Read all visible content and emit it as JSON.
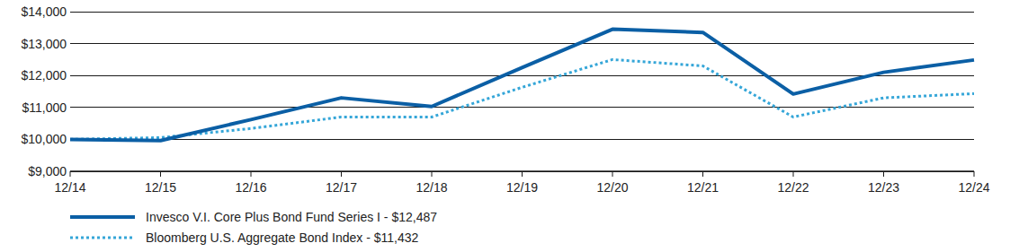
{
  "chart_data": {
    "type": "line",
    "categories": [
      "12/14",
      "12/15",
      "12/16",
      "12/17",
      "12/18",
      "12/19",
      "12/20",
      "12/21",
      "12/22",
      "12/23",
      "12/24"
    ],
    "series": [
      {
        "name": "Invesco V.I. Core Plus Bond Fund Series I - $12,487",
        "color": "#0b5fa5",
        "line_style": "solid",
        "values": [
          10000,
          9960,
          10620,
          11300,
          11030,
          12250,
          13450,
          13350,
          11420,
          12100,
          12487
        ]
      },
      {
        "name": "Bloomberg U.S. Aggregate Bond Index - $11,432",
        "color": "#35a6d8",
        "line_style": "dotted",
        "values": [
          10000,
          10055,
          10340,
          10700,
          10700,
          11630,
          12500,
          12300,
          10700,
          11300,
          11432
        ]
      }
    ],
    "ylim": [
      9000,
      14000
    ],
    "yticks": [
      {
        "value": 9000,
        "label": "$9,000"
      },
      {
        "value": 10000,
        "label": "$10,000"
      },
      {
        "value": 11000,
        "label": "$11,000"
      },
      {
        "value": 12000,
        "label": "$12,000"
      },
      {
        "value": 13000,
        "label": "$13,000"
      },
      {
        "value": 14000,
        "label": "$14,000"
      }
    ],
    "grid": true,
    "legend": "bottom"
  }
}
